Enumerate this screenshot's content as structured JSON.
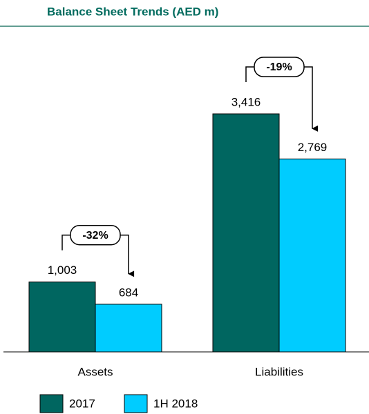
{
  "chart_data": {
    "type": "bar",
    "title": "Balance Sheet Trends (AED m)",
    "categories": [
      "Assets",
      "Liabilities"
    ],
    "series": [
      {
        "name": "2017",
        "color": "#006660",
        "values": [
          1003,
          3416
        ],
        "value_labels": [
          "1,003",
          "3,416"
        ]
      },
      {
        "name": "1H 2018",
        "color": "#00ccff",
        "values": [
          684,
          2769
        ],
        "value_labels": [
          "684",
          "2,769"
        ]
      }
    ],
    "annotations": [
      "-32%",
      "-19%"
    ]
  }
}
